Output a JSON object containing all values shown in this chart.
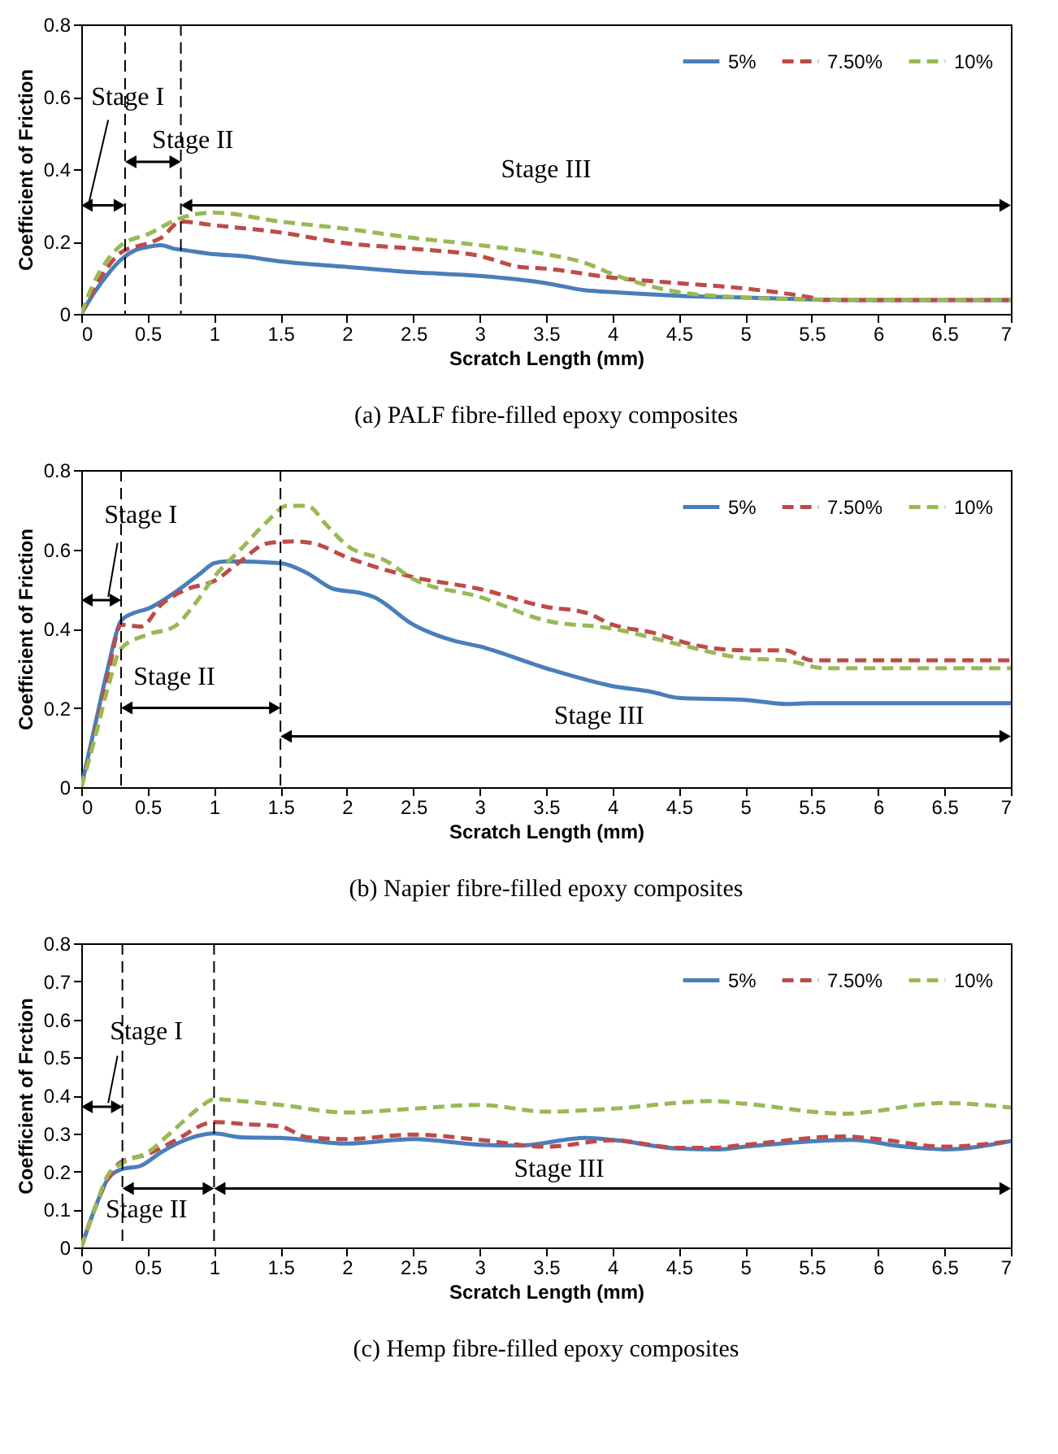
{
  "chart_data": [
    {
      "type": "line",
      "title": "(a) PALF fibre-filled epoxy composites",
      "xlabel": "Scratch Length (mm)",
      "ylabel": "Coefficient of Friction",
      "xlim": [
        0,
        7
      ],
      "ylim": [
        0,
        0.8
      ],
      "xticks": [
        0,
        0.5,
        1,
        1.5,
        2,
        2.5,
        3,
        3.5,
        4,
        4.5,
        5,
        5.5,
        6,
        6.5,
        7
      ],
      "yticks": [
        0,
        0.2,
        0.4,
        0.6,
        0.8
      ],
      "legend": "top right",
      "series": [
        {
          "name": "5%",
          "color": "#4a7ebb",
          "line_style": "solid",
          "x": [
            0,
            0.1,
            0.2,
            0.3,
            0.4,
            0.5,
            0.6,
            0.7,
            0.8,
            1,
            1.2,
            1.5,
            2,
            2.5,
            3,
            3.5,
            3.8,
            4,
            4.5,
            5,
            5.5,
            6,
            7
          ],
          "values": [
            0,
            0.06,
            0.11,
            0.15,
            0.175,
            0.185,
            0.19,
            0.18,
            0.175,
            0.165,
            0.16,
            0.145,
            0.13,
            0.115,
            0.105,
            0.085,
            0.065,
            0.06,
            0.05,
            0.045,
            0.04,
            0.038,
            0.038
          ]
        },
        {
          "name": "7.50%",
          "color": "#be4b48",
          "line_style": "dashed",
          "x": [
            0,
            0.1,
            0.2,
            0.3,
            0.5,
            0.6,
            0.75,
            1,
            1.5,
            2,
            2.5,
            3,
            3.3,
            3.5,
            4,
            4.5,
            5,
            5.5,
            5.6,
            7
          ],
          "values": [
            0,
            0.07,
            0.13,
            0.17,
            0.195,
            0.21,
            0.255,
            0.245,
            0.225,
            0.195,
            0.18,
            0.16,
            0.13,
            0.125,
            0.1,
            0.085,
            0.07,
            0.045,
            0.038,
            0.038
          ]
        },
        {
          "name": "10%",
          "color": "#98b954",
          "line_style": "dashed",
          "x": [
            0,
            0.1,
            0.2,
            0.3,
            0.5,
            0.75,
            1,
            1.5,
            2,
            2.5,
            3,
            3.5,
            3.8,
            4,
            4.5,
            5,
            5.5,
            7
          ],
          "values": [
            0,
            0.09,
            0.15,
            0.19,
            0.22,
            0.265,
            0.28,
            0.255,
            0.235,
            0.21,
            0.19,
            0.165,
            0.14,
            0.11,
            0.06,
            0.045,
            0.04,
            0.038
          ]
        }
      ],
      "ref_lines": [
        {
          "axis": "x",
          "value": 0.33,
          "line_style": "dashed"
        },
        {
          "axis": "x",
          "value": 0.75,
          "line_style": "dashed"
        }
      ],
      "annotations": [
        "Stage I",
        "Stage II",
        "Stage III"
      ]
    },
    {
      "type": "line",
      "title": "(b) Napier fibre-filled epoxy composites",
      "xlabel": "Scratch Length (mm)",
      "ylabel": "Coefficient of Friction",
      "xlim": [
        0,
        7
      ],
      "ylim": [
        0,
        0.8
      ],
      "xticks": [
        0,
        0.5,
        1,
        1.5,
        2,
        2.5,
        3,
        3.5,
        4,
        4.5,
        5,
        5.5,
        6,
        6.5,
        7
      ],
      "yticks": [
        0,
        0.2,
        0.4,
        0.6,
        0.8
      ],
      "legend": "top right",
      "series": [
        {
          "name": "5%",
          "color": "#4a7ebb",
          "line_style": "solid",
          "x": [
            0,
            0.1,
            0.2,
            0.3,
            0.4,
            0.5,
            0.7,
            0.9,
            1,
            1.1,
            1.5,
            1.7,
            1.9,
            2.1,
            2.2,
            2.5,
            2.8,
            3,
            3.5,
            4,
            4.3,
            4.5,
            5,
            5.3,
            5.5,
            6,
            7
          ],
          "values": [
            0,
            0.15,
            0.3,
            0.42,
            0.44,
            0.45,
            0.49,
            0.54,
            0.565,
            0.57,
            0.565,
            0.54,
            0.5,
            0.49,
            0.48,
            0.41,
            0.37,
            0.355,
            0.3,
            0.255,
            0.24,
            0.225,
            0.22,
            0.21,
            0.212,
            0.212,
            0.212
          ]
        },
        {
          "name": "7.50%",
          "color": "#be4b48",
          "line_style": "dashed",
          "x": [
            0,
            0.1,
            0.2,
            0.3,
            0.45,
            0.6,
            0.8,
            1,
            1.2,
            1.4,
            1.6,
            1.75,
            2,
            2.5,
            3,
            3.5,
            3.8,
            4,
            4.3,
            4.6,
            5,
            5.3,
            5.5,
            6,
            7
          ],
          "values": [
            0,
            0.13,
            0.28,
            0.41,
            0.405,
            0.46,
            0.5,
            0.52,
            0.57,
            0.615,
            0.62,
            0.615,
            0.58,
            0.53,
            0.5,
            0.455,
            0.44,
            0.41,
            0.39,
            0.36,
            0.345,
            0.345,
            0.32,
            0.32,
            0.32
          ]
        },
        {
          "name": "10%",
          "color": "#98b954",
          "line_style": "dashed",
          "x": [
            0,
            0.1,
            0.2,
            0.3,
            0.5,
            0.7,
            0.85,
            1,
            1.2,
            1.4,
            1.55,
            1.7,
            1.85,
            2,
            2.3,
            2.5,
            3,
            3.5,
            4,
            4.5,
            5,
            5.3,
            5.6,
            6,
            7
          ],
          "values": [
            0,
            0.12,
            0.25,
            0.35,
            0.385,
            0.405,
            0.46,
            0.53,
            0.6,
            0.67,
            0.71,
            0.71,
            0.66,
            0.61,
            0.57,
            0.525,
            0.48,
            0.42,
            0.4,
            0.36,
            0.325,
            0.32,
            0.3,
            0.3,
            0.3
          ]
        }
      ],
      "ref_lines": [
        {
          "axis": "x",
          "value": 0.3,
          "line_style": "dashed"
        },
        {
          "axis": "x",
          "value": 1.5,
          "line_style": "dashed"
        }
      ],
      "annotations": [
        "Stage I",
        "Stage II",
        "Stage III"
      ]
    },
    {
      "type": "line",
      "title": "(c) Hemp fibre-filled epoxy composites",
      "xlabel": "Scratch Length (mm)",
      "ylabel": "Coefficient of Frction",
      "xlim": [
        0,
        7
      ],
      "ylim": [
        0,
        0.8
      ],
      "xticks": [
        0,
        0.5,
        1,
        1.5,
        2,
        2.5,
        3,
        3.5,
        4,
        4.5,
        5,
        5.5,
        6,
        6.5,
        7
      ],
      "yticks": [
        0,
        0.1,
        0.2,
        0.3,
        0.4,
        0.5,
        0.6,
        0.7,
        0.8
      ],
      "legend": "top right",
      "series": [
        {
          "name": "5%",
          "color": "#4a7ebb",
          "line_style": "solid",
          "x": [
            0,
            0.1,
            0.2,
            0.3,
            0.45,
            0.6,
            0.8,
            1,
            1.2,
            1.5,
            2,
            2.5,
            3,
            3.3,
            3.8,
            4,
            4.5,
            4.8,
            5,
            5.8,
            6.2,
            6.5,
            7
          ],
          "values": [
            0,
            0.1,
            0.18,
            0.205,
            0.215,
            0.25,
            0.285,
            0.3,
            0.29,
            0.288,
            0.273,
            0.285,
            0.27,
            0.268,
            0.288,
            0.283,
            0.26,
            0.258,
            0.265,
            0.283,
            0.265,
            0.258,
            0.28
          ]
        },
        {
          "name": "7.50%",
          "color": "#be4b48",
          "line_style": "dashed",
          "x": [
            0,
            0.1,
            0.2,
            0.3,
            0.5,
            0.7,
            1,
            1.2,
            1.5,
            1.7,
            2,
            2.5,
            3,
            3.5,
            4,
            4.5,
            4.75,
            5,
            5.75,
            6,
            6.5,
            7
          ],
          "values": [
            0,
            0.1,
            0.18,
            0.225,
            0.245,
            0.28,
            0.33,
            0.325,
            0.318,
            0.29,
            0.285,
            0.297,
            0.283,
            0.265,
            0.282,
            0.262,
            0.262,
            0.27,
            0.292,
            0.285,
            0.265,
            0.28
          ]
        },
        {
          "name": "10%",
          "color": "#98b954",
          "line_style": "dashed",
          "x": [
            0,
            0.1,
            0.2,
            0.3,
            0.5,
            0.7,
            0.9,
            1,
            1.2,
            1.5,
            2,
            2.5,
            3,
            3.5,
            4,
            4.75,
            5,
            5.75,
            6.5,
            7
          ],
          "values": [
            0,
            0.1,
            0.19,
            0.22,
            0.25,
            0.31,
            0.37,
            0.39,
            0.385,
            0.375,
            0.355,
            0.365,
            0.375,
            0.357,
            0.365,
            0.385,
            0.378,
            0.352,
            0.38,
            0.368
          ]
        }
      ],
      "ref_lines": [
        {
          "axis": "x",
          "value": 0.31,
          "line_style": "dashed"
        },
        {
          "axis": "x",
          "value": 1,
          "line_style": "dashed"
        }
      ],
      "annotations": [
        "Stage I",
        "Stage II",
        "Stage III"
      ]
    }
  ]
}
